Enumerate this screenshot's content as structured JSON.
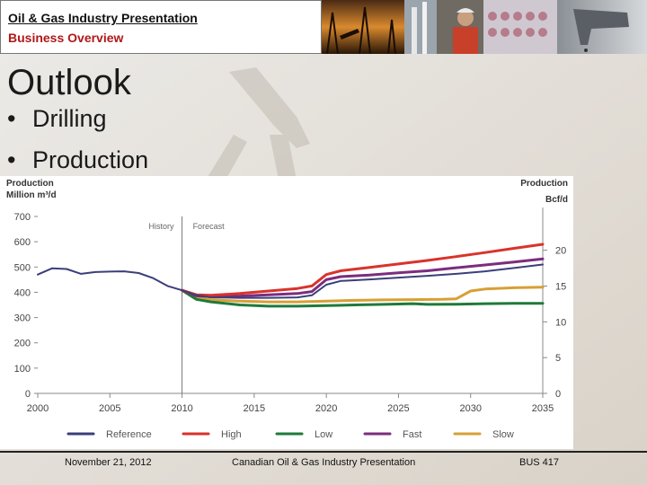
{
  "header": {
    "title": "Oil & Gas Industry Presentation",
    "subtitle": "Business Overview"
  },
  "slide": {
    "title": "Outlook",
    "bullets": [
      "Drilling",
      "Production"
    ]
  },
  "footer": {
    "date": "November 21, 2012",
    "center": "Canadian Oil & Gas Industry Presentation",
    "course": "BUS 417"
  },
  "colors": {
    "reference": "#3a3f7a",
    "high": "#d9332b",
    "low": "#1e7a3a",
    "fast": "#7b2d7e",
    "slow": "#d6a035"
  },
  "chart_data": {
    "type": "line",
    "left_label_line1": "Production",
    "left_label_line2": "Million m³/d",
    "right_label_line1": "Production",
    "right_label_line2": "Bcf/d",
    "history_label": "History",
    "forecast_label": "Forecast",
    "xlim": [
      2000,
      2035
    ],
    "ylim": [
      0,
      700
    ],
    "y2lim": [
      0,
      24.72
    ],
    "x_ticks": [
      "2000",
      "2005",
      "2010",
      "2015",
      "2020",
      "2025",
      "2030",
      "2035"
    ],
    "y_ticks": [
      "0",
      "100",
      "200",
      "300",
      "400",
      "500",
      "600",
      "700"
    ],
    "y2_ticks": [
      "0",
      "5",
      "10",
      "15",
      "20"
    ],
    "y2_tick_values": [
      0,
      5,
      10,
      15,
      20
    ],
    "divider_x": 2010,
    "series": [
      {
        "name": "Reference",
        "color_key": "reference",
        "x": [
          2000,
          2001,
          2002,
          2003,
          2004,
          2005,
          2006,
          2007,
          2008,
          2009,
          2010,
          2011,
          2012,
          2014,
          2016,
          2018,
          2019,
          2020,
          2021,
          2023,
          2025,
          2027,
          2029,
          2031,
          2033,
          2035
        ],
        "y": [
          470,
          495,
          492,
          473,
          480,
          482,
          483,
          476,
          456,
          425,
          408,
          388,
          380,
          378,
          378,
          380,
          388,
          430,
          445,
          451,
          458,
          465,
          473,
          483,
          496,
          510
        ]
      },
      {
        "name": "High",
        "color_key": "high",
        "x": [
          2010,
          2011,
          2012,
          2014,
          2016,
          2018,
          2019,
          2020,
          2021,
          2023,
          2025,
          2027,
          2029,
          2031,
          2033,
          2035
        ],
        "y": [
          408,
          390,
          388,
          395,
          405,
          415,
          425,
          470,
          485,
          498,
          512,
          526,
          541,
          557,
          574,
          590
        ]
      },
      {
        "name": "Low",
        "color_key": "low",
        "x": [
          2010,
          2011,
          2012,
          2014,
          2016,
          2018,
          2020,
          2022,
          2024,
          2026,
          2027,
          2029,
          2031,
          2033,
          2035
        ],
        "y": [
          408,
          372,
          362,
          350,
          345,
          345,
          347,
          350,
          352,
          355,
          352,
          353,
          355,
          356,
          356
        ]
      },
      {
        "name": "Fast",
        "color_key": "fast",
        "x": [
          2010,
          2011,
          2012,
          2014,
          2016,
          2018,
          2019,
          2020,
          2021,
          2023,
          2025,
          2027,
          2029,
          2031,
          2033,
          2035
        ],
        "y": [
          408,
          386,
          383,
          385,
          390,
          395,
          403,
          450,
          462,
          468,
          477,
          485,
          497,
          508,
          520,
          532
        ]
      },
      {
        "name": "Slow",
        "color_key": "slow",
        "x": [
          2010,
          2011,
          2012,
          2014,
          2016,
          2018,
          2020,
          2022,
          2024,
          2026,
          2028,
          2029,
          2030,
          2031,
          2033,
          2035
        ],
        "y": [
          408,
          378,
          370,
          365,
          362,
          362,
          365,
          368,
          370,
          371,
          372,
          374,
          405,
          413,
          418,
          420
        ]
      }
    ]
  }
}
